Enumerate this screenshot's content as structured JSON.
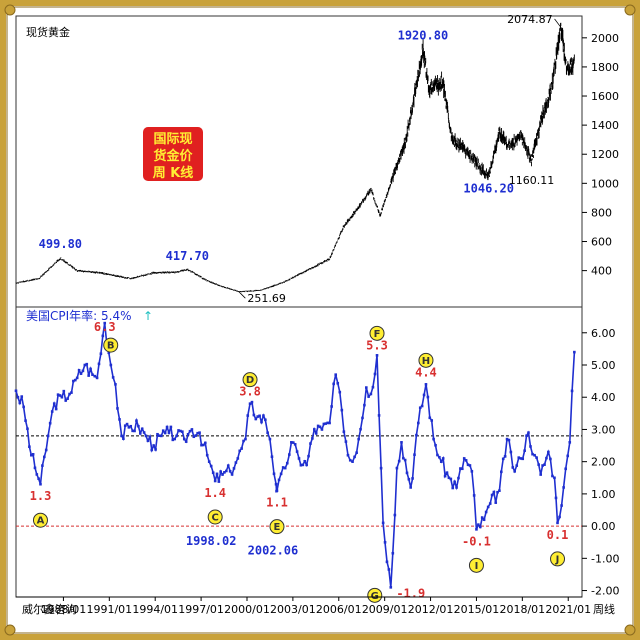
{
  "chart_data": [
    {
      "type": "candlestick",
      "title": "现货黄金",
      "badge": {
        "lines": [
          "国际现",
          "货金价",
          "周 K线"
        ]
      },
      "ylim": [
        150,
        2150
      ],
      "yticks": [
        400,
        600,
        800,
        1000,
        1200,
        1400,
        1600,
        1800,
        2000
      ],
      "price_path": [
        [
          1985.0,
          315
        ],
        [
          1986.5,
          345
        ],
        [
          1987.9,
          485
        ],
        [
          1989.0,
          400
        ],
        [
          1990.5,
          385
        ],
        [
          1992.5,
          345
        ],
        [
          1994.0,
          385
        ],
        [
          1995.5,
          390
        ],
        [
          1996.2,
          410
        ],
        [
          1997.5,
          330
        ],
        [
          1998.5,
          290
        ],
        [
          1999.6,
          255
        ],
        [
          2001.0,
          265
        ],
        [
          2002.5,
          320
        ],
        [
          2004.0,
          400
        ],
        [
          2005.5,
          480
        ],
        [
          2006.4,
          700
        ],
        [
          2007.5,
          850
        ],
        [
          2008.2,
          960
        ],
        [
          2008.8,
          780
        ],
        [
          2009.5,
          1000
        ],
        [
          2010.5,
          1300
        ],
        [
          2011.6,
          1920
        ],
        [
          2012.0,
          1650
        ],
        [
          2012.9,
          1700
        ],
        [
          2013.5,
          1300
        ],
        [
          2014.2,
          1250
        ],
        [
          2015.9,
          1046
        ],
        [
          2016.6,
          1350
        ],
        [
          2017.3,
          1250
        ],
        [
          2018.0,
          1330
        ],
        [
          2018.7,
          1160
        ],
        [
          2019.5,
          1500
        ],
        [
          2020.0,
          1650
        ],
        [
          2020.6,
          2074
        ],
        [
          2021.0,
          1800
        ],
        [
          2021.5,
          1820
        ]
      ],
      "annotations": [
        {
          "text": "499.80",
          "x": 1987.9,
          "y": 499.8,
          "color": "blue"
        },
        {
          "text": "417.70",
          "x": 1996.2,
          "y": 417.7,
          "color": "blue"
        },
        {
          "text": "251.69",
          "x": 1999.6,
          "y": 251.69,
          "color": "black"
        },
        {
          "text": "1920.80",
          "x": 2011.6,
          "y": 1920.8,
          "color": "blue"
        },
        {
          "text": "1046.20",
          "x": 2015.9,
          "y": 1046.2,
          "color": "blue"
        },
        {
          "text": "1160.11",
          "x": 2018.7,
          "y": 1160.11,
          "color": "black"
        },
        {
          "text": "2074.87",
          "x": 2020.6,
          "y": 2074.87,
          "color": "black"
        }
      ]
    },
    {
      "type": "line",
      "title": "美国CPI年率: 5.4%",
      "arrow": "↑",
      "ylim": [
        -2.2,
        6.8
      ],
      "yticks": [
        -2.0,
        -1.0,
        0.0,
        1.0,
        2.0,
        3.0,
        4.0,
        5.0,
        6.0
      ],
      "reference_lines": [
        2.8,
        0.0
      ],
      "series": [
        {
          "values": [
            [
              1985.0,
              4.2
            ],
            [
              1985.5,
              3.7
            ],
            [
              1986.0,
              2.2
            ],
            [
              1986.6,
              1.3
            ],
            [
              1987.1,
              2.8
            ],
            [
              1987.5,
              3.8
            ],
            [
              1988.0,
              4.0
            ],
            [
              1988.5,
              4.1
            ],
            [
              1989.0,
              4.6
            ],
            [
              1989.5,
              5.0
            ],
            [
              1990.0,
              4.7
            ],
            [
              1990.3,
              4.6
            ],
            [
              1990.8,
              6.3
            ],
            [
              1991.2,
              5.0
            ],
            [
              1991.5,
              4.4
            ],
            [
              1991.9,
              2.8
            ],
            [
              1992.5,
              3.1
            ],
            [
              1993.0,
              3.1
            ],
            [
              1993.5,
              2.8
            ],
            [
              1994.0,
              2.5
            ],
            [
              1994.5,
              2.8
            ],
            [
              1995.0,
              2.9
            ],
            [
              1995.5,
              2.8
            ],
            [
              1996.0,
              2.7
            ],
            [
              1996.5,
              3.0
            ],
            [
              1997.0,
              2.9
            ],
            [
              1997.5,
              2.2
            ],
            [
              1998.02,
              1.4
            ],
            [
              1998.5,
              1.6
            ],
            [
              1999.0,
              1.7
            ],
            [
              1999.5,
              2.1
            ],
            [
              2000.0,
              2.7
            ],
            [
              2000.3,
              3.8
            ],
            [
              2000.8,
              3.4
            ],
            [
              2001.3,
              3.3
            ],
            [
              2001.6,
              2.7
            ],
            [
              2002.0,
              1.3
            ],
            [
              2002.06,
              1.1
            ],
            [
              2002.6,
              1.8
            ],
            [
              2003.0,
              2.6
            ],
            [
              2003.5,
              2.1
            ],
            [
              2004.0,
              1.9
            ],
            [
              2004.5,
              3.0
            ],
            [
              2005.0,
              3.0
            ],
            [
              2005.5,
              3.2
            ],
            [
              2005.9,
              4.7
            ],
            [
              2006.3,
              3.6
            ],
            [
              2006.7,
              2.2
            ],
            [
              2007.0,
              2.0
            ],
            [
              2007.4,
              2.7
            ],
            [
              2007.9,
              4.3
            ],
            [
              2008.2,
              4.1
            ],
            [
              2008.6,
              5.3
            ],
            [
              2009.0,
              0.1
            ],
            [
              2009.5,
              -1.9
            ],
            [
              2009.9,
              1.8
            ],
            [
              2010.2,
              2.6
            ],
            [
              2010.8,
              1.2
            ],
            [
              2011.3,
              3.2
            ],
            [
              2011.8,
              4.4
            ],
            [
              2012.3,
              2.7
            ],
            [
              2012.8,
              2.0
            ],
            [
              2013.3,
              1.5
            ],
            [
              2013.8,
              1.2
            ],
            [
              2014.3,
              2.1
            ],
            [
              2014.8,
              1.7
            ],
            [
              2015.1,
              -0.1
            ],
            [
              2015.6,
              0.2
            ],
            [
              2016.0,
              0.7
            ],
            [
              2016.6,
              1.1
            ],
            [
              2017.1,
              2.7
            ],
            [
              2017.6,
              1.7
            ],
            [
              2018.0,
              2.1
            ],
            [
              2018.5,
              2.9
            ],
            [
              2018.9,
              2.2
            ],
            [
              2019.3,
              1.6
            ],
            [
              2019.8,
              2.3
            ],
            [
              2020.2,
              1.5
            ],
            [
              2020.4,
              0.1
            ],
            [
              2020.8,
              1.2
            ],
            [
              2021.2,
              2.6
            ],
            [
              2021.5,
              5.4
            ]
          ]
        }
      ],
      "annotations": [
        {
          "label": "A",
          "value": "1.3",
          "x": 1986.6,
          "y": 1.3,
          "pos": "below"
        },
        {
          "label": "B",
          "value": "6.3",
          "x": 1990.8,
          "y": 6.3,
          "pos": "above"
        },
        {
          "label": "C",
          "value": "1.4",
          "x": 1998.02,
          "y": 1.4,
          "pos": "below",
          "date": "1998.02"
        },
        {
          "label": "D",
          "value": "3.8",
          "x": 2000.3,
          "y": 3.8,
          "pos": "above"
        },
        {
          "label": "E",
          "value": "1.1",
          "x": 2002.06,
          "y": 1.1,
          "pos": "below",
          "date": "2002.06"
        },
        {
          "label": "F",
          "value": "5.3",
          "x": 2008.6,
          "y": 5.3,
          "pos": "above"
        },
        {
          "label": "G",
          "value": "-1.9",
          "x": 2009.5,
          "y": -1.9,
          "pos": "below"
        },
        {
          "label": "H",
          "value": "4.4",
          "x": 2011.8,
          "y": 4.4,
          "pos": "above"
        },
        {
          "label": "I",
          "value": "-0.1",
          "x": 2015.1,
          "y": -0.1,
          "pos": "below"
        },
        {
          "label": "J",
          "value": "0.1",
          "x": 2020.4,
          "y": 0.1,
          "pos": "below"
        }
      ]
    }
  ],
  "x_axis": {
    "xlim": [
      1985.0,
      2022.0
    ],
    "ticks": [
      {
        "x": 1988.1,
        "label": "1988/01"
      },
      {
        "x": 1991.1,
        "label": "1991/01"
      },
      {
        "x": 1994.1,
        "label": "1994/01"
      },
      {
        "x": 1997.1,
        "label": "1997/01"
      },
      {
        "x": 2000.1,
        "label": "2000/01"
      },
      {
        "x": 2003.1,
        "label": "2003/01"
      },
      {
        "x": 2006.1,
        "label": "2006/01"
      },
      {
        "x": 2009.1,
        "label": "2009/01"
      },
      {
        "x": 2012.1,
        "label": "2012/01"
      },
      {
        "x": 2015.1,
        "label": "2015/01"
      },
      {
        "x": 2018.1,
        "label": "2018/01"
      },
      {
        "x": 2021.1,
        "label": "2021/01"
      }
    ],
    "left_label": "威尔鑫咨询",
    "right_label": "周线"
  },
  "colors": {
    "candle": "#000000",
    "cpi_line": "#1f2fd0",
    "ref_high": "#000000",
    "ref_zero": "#d83030",
    "badge_bg": "#e02020",
    "badge_text": "#ffee33"
  }
}
